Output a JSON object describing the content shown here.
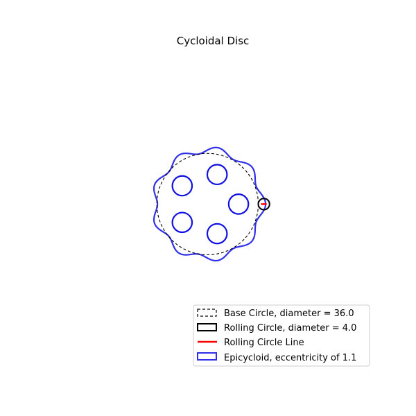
{
  "chart_data": {
    "type": "line",
    "title": "Cycloidal Disc",
    "xlabel": "",
    "ylabel": "",
    "axes_visible": false,
    "aspect": "equal",
    "xlim": [
      -54,
      58
    ],
    "ylim": [
      -58,
      54
    ],
    "legend_placement": "lower-right",
    "base_circle": {
      "center": [
        0,
        0
      ],
      "diameter": 36.0,
      "color": "#000000",
      "style": "dashed"
    },
    "rolling_circle": {
      "center": [
        20,
        0
      ],
      "diameter": 4.0,
      "color": "#000000"
    },
    "rolling_circle_line": {
      "x": [
        19,
        21
      ],
      "y": [
        0,
        0
      ],
      "color": "#ff0000"
    },
    "epicycloid": {
      "eccentricity": 1.1,
      "lobes": 9,
      "color": "#3030e8"
    },
    "holes": {
      "color": "#1010e0",
      "radius": 3.5,
      "centers": [
        [
          11,
          0
        ],
        [
          3.4,
          10.5
        ],
        [
          -9,
          6.5
        ],
        [
          -9,
          -6.5
        ],
        [
          3.4,
          -10.5
        ]
      ]
    },
    "legend": [
      {
        "label": "Base Circle, diameter = 36.0",
        "marker": "dashed-box"
      },
      {
        "label": "Rolling Circle, diameter = 4.0",
        "marker": "black-box"
      },
      {
        "label": "Rolling Circle Line",
        "marker": "red-line"
      },
      {
        "label": "Epicycloid, eccentricity of 1.1",
        "marker": "blue-box"
      }
    ]
  }
}
